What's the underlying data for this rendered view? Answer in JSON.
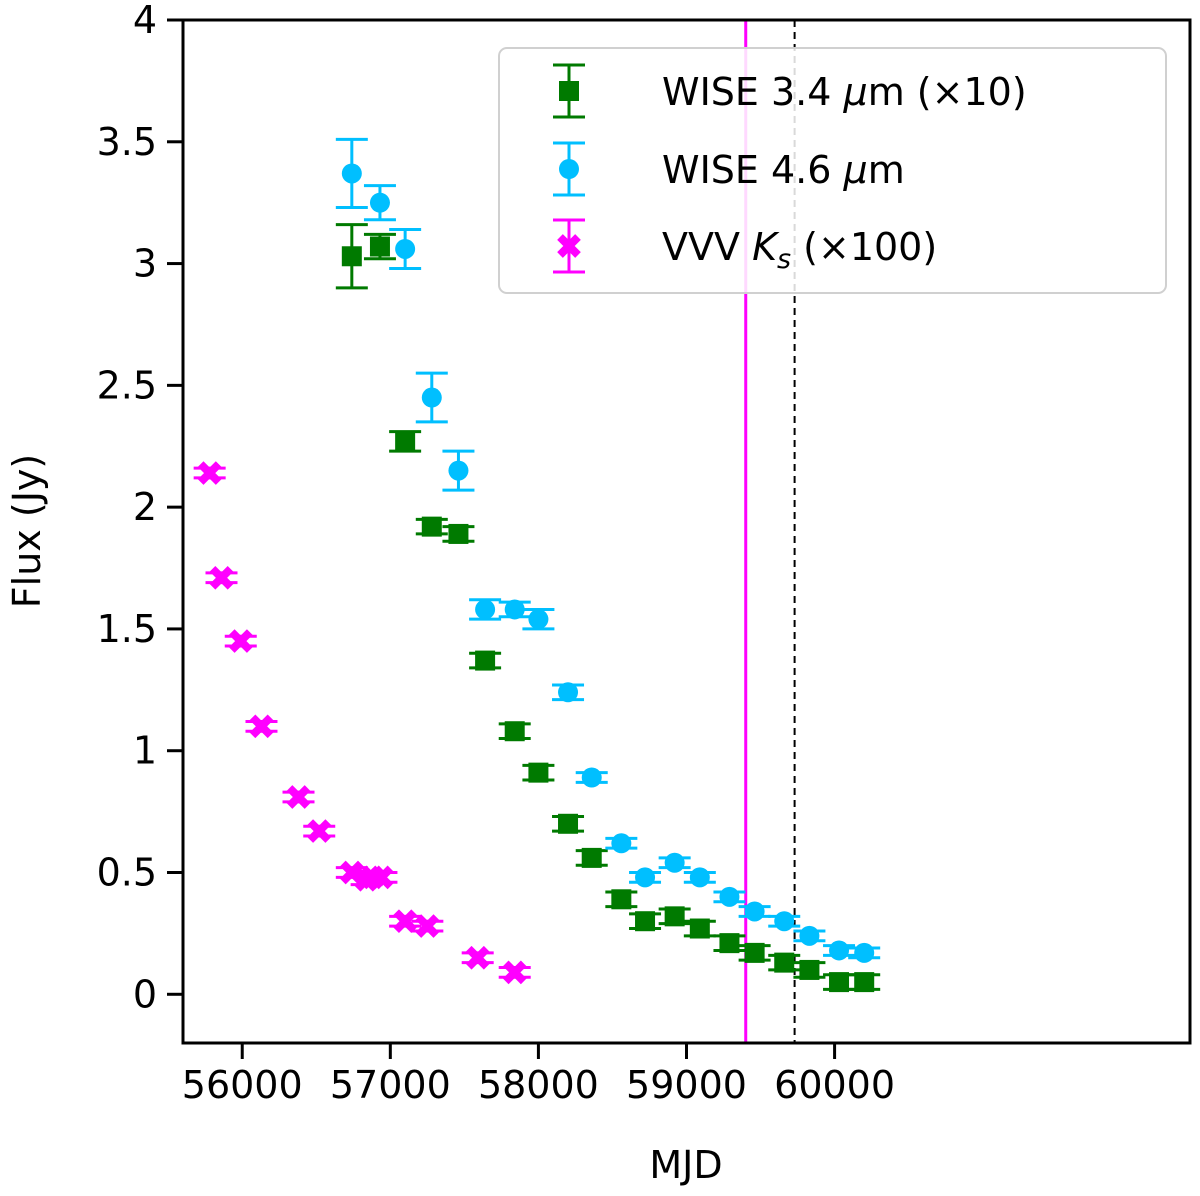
{
  "chart_data": {
    "type": "scatter",
    "title": "",
    "xlabel": "MJD",
    "ylabel": "Flux (Jy)",
    "xlim": [
      55600,
      62400
    ],
    "ylim": [
      -0.2,
      4.0
    ],
    "xticks": [
      56000,
      57000,
      58000,
      59000,
      60000
    ],
    "xtick_labels": [
      "56000",
      "57000",
      "58000",
      "59000",
      "60000"
    ],
    "yticks": [
      0,
      0.5,
      1,
      1.5,
      2,
      2.5,
      3,
      3.5,
      4
    ],
    "ytick_labels": [
      "0",
      "0.5",
      "1",
      "1.5",
      "2",
      "2.5",
      "3",
      "3.5",
      "4"
    ],
    "grid": false,
    "legend_position": "top-right",
    "vlines": [
      {
        "x": 59400,
        "color": "#ff00ff",
        "style": "solid"
      },
      {
        "x": 59730,
        "color": "#000000",
        "style": "dashed"
      }
    ],
    "series": [
      {
        "name": "WISE 3.4 μm (×10)",
        "label_prefix": "WISE 3.4 ",
        "label_unit": "μ",
        "label_suffix": "m (×10)",
        "marker": "square",
        "color": "#007a00",
        "x": [
          56740,
          56930,
          57100,
          57280,
          57460,
          57640,
          57840,
          58000,
          58200,
          58360,
          58560,
          58720,
          58920,
          59090,
          59290,
          59460,
          59660,
          59830,
          60030,
          60200
        ],
        "y": [
          3.03,
          3.07,
          2.27,
          1.92,
          1.89,
          1.37,
          1.08,
          0.91,
          0.7,
          0.56,
          0.39,
          0.3,
          0.32,
          0.27,
          0.21,
          0.17,
          0.13,
          0.1,
          0.05,
          0.05
        ],
        "yerr": [
          0.13,
          0.05,
          0.04,
          0.03,
          0.03,
          0.03,
          0.03,
          0.03,
          0.03,
          0.03,
          0.03,
          0.03,
          0.03,
          0.03,
          0.03,
          0.03,
          0.03,
          0.03,
          0.03,
          0.03
        ]
      },
      {
        "name": "WISE 4.6 μm",
        "label_prefix": "WISE 4.6 ",
        "label_unit": "μ",
        "label_suffix": "m",
        "marker": "circle",
        "color": "#00bfff",
        "x": [
          56740,
          56930,
          57100,
          57280,
          57460,
          57640,
          57840,
          58000,
          58200,
          58360,
          58560,
          58720,
          58920,
          59090,
          59290,
          59460,
          59660,
          59830,
          60030,
          60200
        ],
        "y": [
          3.37,
          3.25,
          3.06,
          2.45,
          2.15,
          1.58,
          1.58,
          1.54,
          1.24,
          0.89,
          0.62,
          0.48,
          0.54,
          0.48,
          0.4,
          0.34,
          0.3,
          0.24,
          0.18,
          0.17
        ],
        "yerr": [
          0.14,
          0.07,
          0.08,
          0.1,
          0.08,
          0.04,
          0.03,
          0.04,
          0.03,
          0.02,
          0.02,
          0.02,
          0.02,
          0.02,
          0.02,
          0.02,
          0.02,
          0.02,
          0.02,
          0.02
        ]
      },
      {
        "name": "VVV Ks (×100)",
        "label_prefix": "VVV ",
        "label_italic": "K",
        "label_sub": "s",
        "label_suffix": " (×100)",
        "marker": "x",
        "color": "#ff00ff",
        "x": [
          55780,
          55860,
          55990,
          56130,
          56380,
          56520,
          56740,
          56840,
          56880,
          56940,
          57100,
          57250,
          57590,
          57840
        ],
        "y": [
          2.14,
          1.71,
          1.45,
          1.1,
          0.81,
          0.67,
          0.5,
          0.47,
          0.48,
          0.48,
          0.3,
          0.28,
          0.15,
          0.09
        ],
        "yerr": [
          0.02,
          0.02,
          0.02,
          0.02,
          0.02,
          0.02,
          0.02,
          0.02,
          0.02,
          0.02,
          0.02,
          0.02,
          0.02,
          0.02
        ]
      }
    ]
  }
}
